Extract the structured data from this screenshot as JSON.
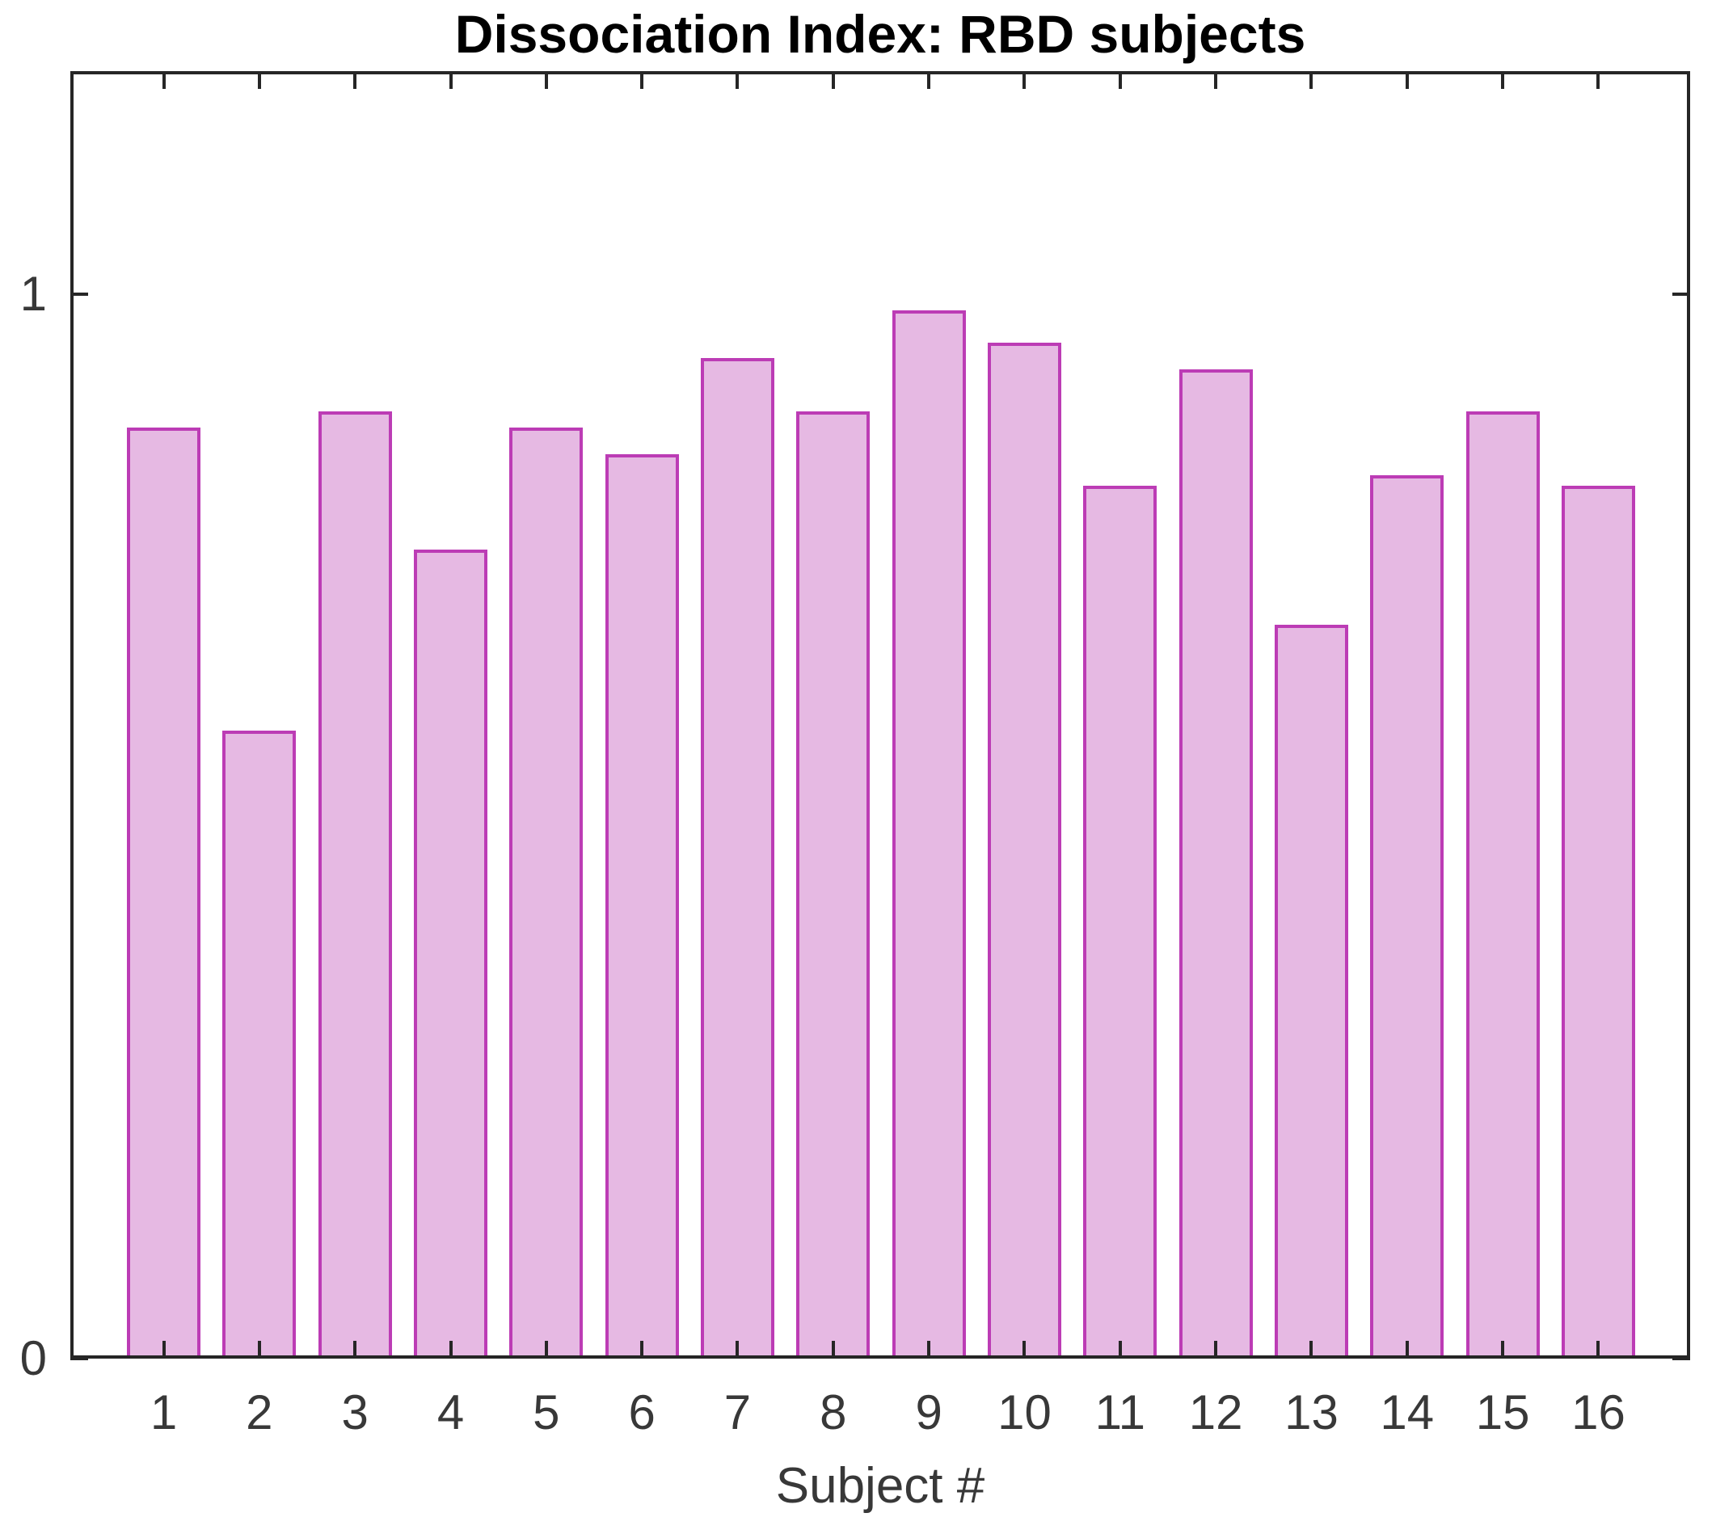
{
  "chart_data": {
    "type": "bar",
    "title": "Dissociation Index: RBD subjects",
    "xlabel": "Subject #",
    "ylabel": "",
    "categories": [
      "1",
      "2",
      "3",
      "4",
      "5",
      "6",
      "7",
      "8",
      "9",
      "10",
      "11",
      "12",
      "13",
      "14",
      "15",
      "16"
    ],
    "values": [
      0.875,
      0.59,
      0.89,
      0.76,
      0.875,
      0.85,
      0.94,
      0.89,
      0.985,
      0.955,
      0.82,
      0.93,
      0.69,
      0.83,
      0.89,
      0.82
    ],
    "ylim": [
      0,
      1.21
    ],
    "yticks": [
      0,
      1
    ],
    "grid": false,
    "legend": null,
    "bar_fill_color": "#e6b9e3",
    "bar_edge_color": "#bc3cb5",
    "axis_color": "#262626",
    "tick_label_color": "#383838",
    "title_color": "#000000"
  }
}
